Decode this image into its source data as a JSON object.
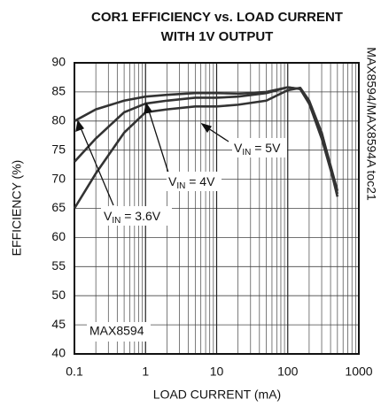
{
  "chart_data": {
    "type": "line",
    "title": [
      "COR1 EFFICIENCY vs. LOAD CURRENT",
      "WITH 1V OUTPUT"
    ],
    "xlabel": "LOAD CURRENT (mA)",
    "ylabel": "EFFICIENCY (%)",
    "x": [
      0.1,
      0.2,
      0.5,
      1,
      2,
      5,
      10,
      20,
      50,
      100,
      150,
      200,
      300,
      500
    ],
    "series": [
      {
        "name": [
          "V",
          "IN",
          " = 3.6V"
        ],
        "color": "#333333",
        "values": [
          80,
          82,
          83.5,
          84.2,
          84.5,
          84.8,
          84.8,
          84.7,
          85,
          85.8,
          85.5,
          83,
          78,
          68
        ]
      },
      {
        "name": [
          "V",
          "IN",
          " = 4V"
        ],
        "color": "#333333",
        "values": [
          73,
          77,
          81.5,
          83,
          83.5,
          84,
          84,
          84.2,
          84.8,
          85.8,
          85.5,
          83,
          77,
          67.5
        ]
      },
      {
        "name": [
          "V",
          "IN",
          " = 5V"
        ],
        "color": "#333333",
        "values": [
          65,
          71,
          78,
          81.5,
          82,
          82.5,
          82.5,
          82.8,
          83.5,
          85.3,
          85.7,
          83.5,
          78,
          67
        ]
      }
    ],
    "xlim": [
      0.1,
      1000
    ],
    "xticks": [
      0.1,
      1,
      10,
      100,
      1000
    ],
    "xscale": "log",
    "ylim": [
      40,
      90
    ],
    "yticks": [
      40,
      45,
      50,
      55,
      60,
      65,
      70,
      75,
      80,
      85,
      90
    ],
    "grid": true,
    "annotations": [
      "MAX8594",
      "MAX8594/MAX8594A toc21"
    ]
  }
}
